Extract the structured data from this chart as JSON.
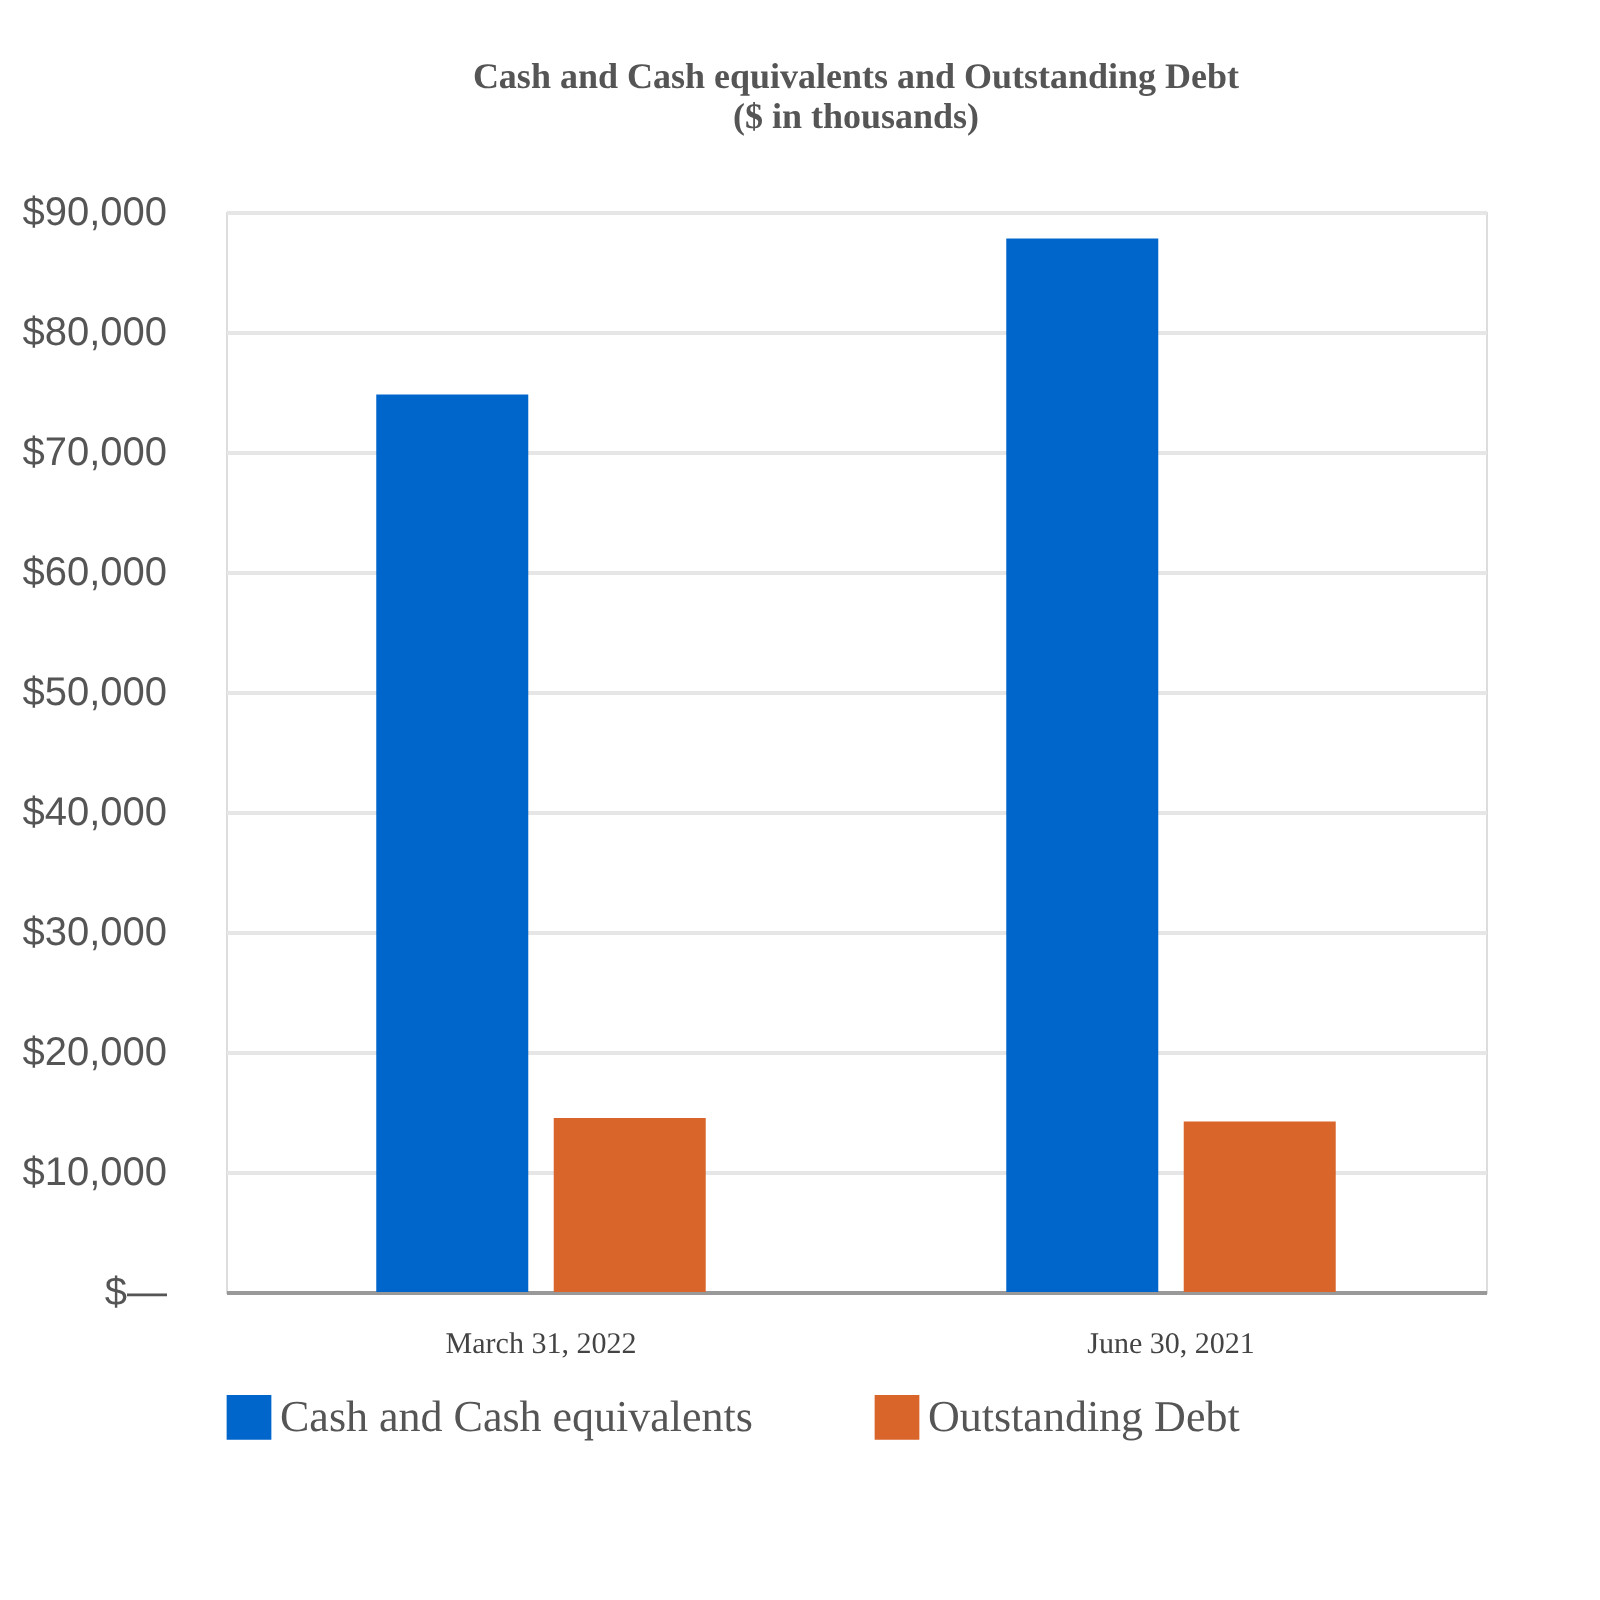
{
  "chart_data": {
    "type": "bar",
    "title": "Cash and Cash equivalents and Outstanding Debt\n($ in thousands)",
    "categories": [
      "March 31, 2022",
      "June 30, 2021"
    ],
    "series": [
      {
        "name": "Cash and Cash equivalents",
        "color": "#0066cc",
        "values": [
          74800,
          87800
        ]
      },
      {
        "name": "Outstanding Debt",
        "color": "#d9652b",
        "values": [
          14500,
          14200
        ]
      }
    ],
    "ylim": [
      0,
      90000
    ],
    "yticks": [
      {
        "value": 0,
        "label": "$—"
      },
      {
        "value": 10000,
        "label": "$10,000"
      },
      {
        "value": 20000,
        "label": "$20,000"
      },
      {
        "value": 30000,
        "label": "$30,000"
      },
      {
        "value": 40000,
        "label": "$40,000"
      },
      {
        "value": 50000,
        "label": "$50,000"
      },
      {
        "value": 60000,
        "label": "$60,000"
      },
      {
        "value": 70000,
        "label": "$70,000"
      },
      {
        "value": 80000,
        "label": "$80,000"
      },
      {
        "value": 90000,
        "label": "$90,000"
      }
    ],
    "grid": "y",
    "legend": "bottom"
  }
}
